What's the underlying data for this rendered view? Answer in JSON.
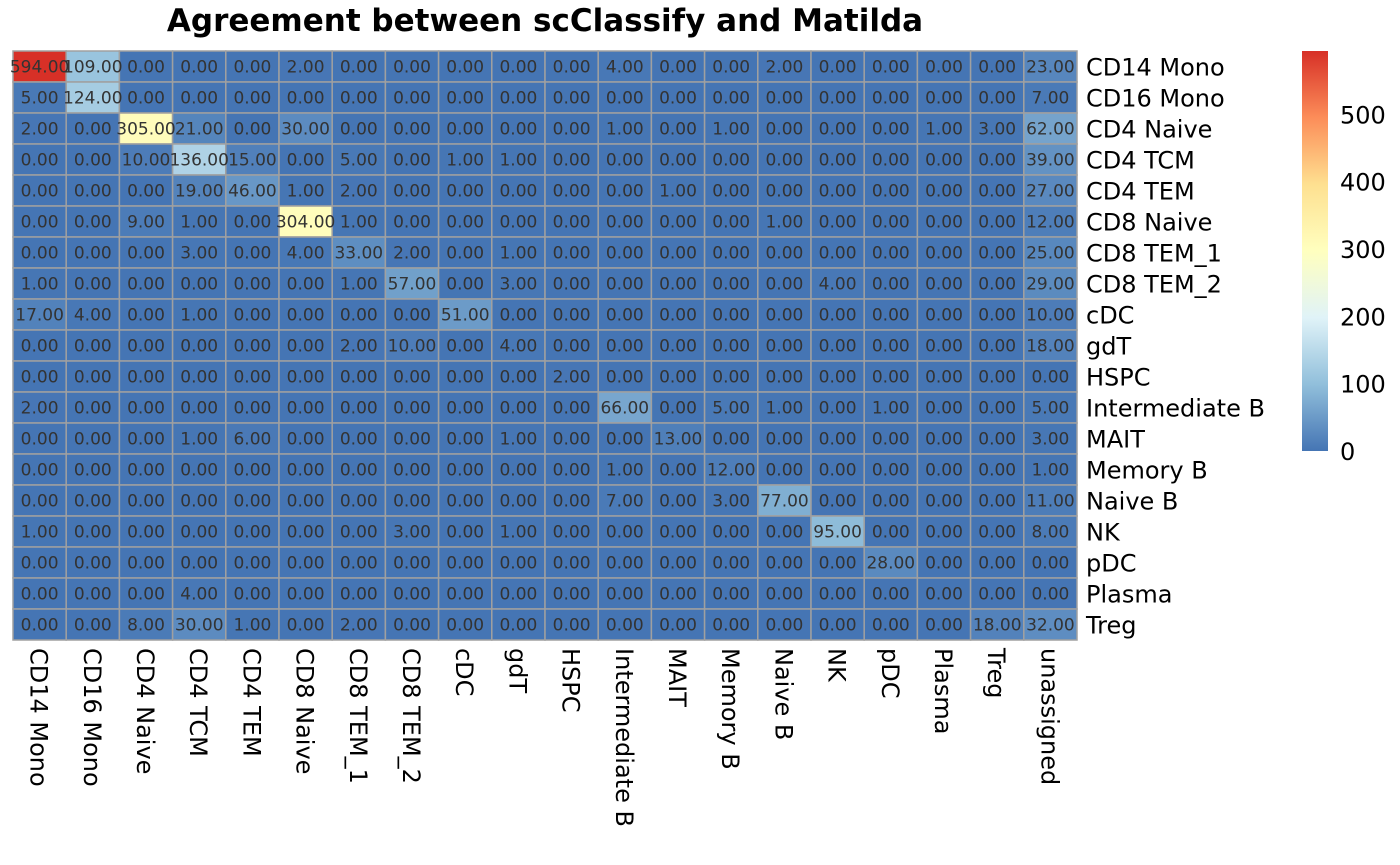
{
  "chart_data": {
    "type": "heatmap",
    "title": "Agreement between scClassify and Matilda",
    "rows": [
      "CD14 Mono",
      "CD16 Mono",
      "CD4 Naive",
      "CD4 TCM",
      "CD4 TEM",
      "CD8 Naive",
      "CD8 TEM_1",
      "CD8 TEM_2",
      "cDC",
      "gdT",
      "HSPC",
      "Intermediate B",
      "MAIT",
      "Memory B",
      "Naive B",
      "NK",
      "pDC",
      "Plasma",
      "Treg"
    ],
    "columns": [
      "CD14 Mono",
      "CD16 Mono",
      "CD4 Naive",
      "CD4 TCM",
      "CD4 TEM",
      "CD8 Naive",
      "CD8 TEM_1",
      "CD8 TEM_2",
      "cDC",
      "gdT",
      "HSPC",
      "Intermediate B",
      "MAIT",
      "Memory B",
      "Naive B",
      "NK",
      "pDC",
      "Plasma",
      "Treg",
      "unassigned"
    ],
    "values": [
      [
        594,
        109,
        0,
        0,
        0,
        2,
        0,
        0,
        0,
        0,
        0,
        4,
        0,
        0,
        2,
        0,
        0,
        0,
        0,
        23
      ],
      [
        5,
        124,
        0,
        0,
        0,
        0,
        0,
        0,
        0,
        0,
        0,
        0,
        0,
        0,
        0,
        0,
        0,
        0,
        0,
        7
      ],
      [
        2,
        0,
        305,
        21,
        0,
        30,
        0,
        0,
        0,
        0,
        0,
        1,
        0,
        1,
        0,
        0,
        0,
        1,
        3,
        62
      ],
      [
        0,
        0,
        10,
        136,
        15,
        0,
        5,
        0,
        1,
        1,
        0,
        0,
        0,
        0,
        0,
        0,
        0,
        0,
        0,
        39
      ],
      [
        0,
        0,
        0,
        19,
        46,
        1,
        2,
        0,
        0,
        0,
        0,
        0,
        1,
        0,
        0,
        0,
        0,
        0,
        0,
        27
      ],
      [
        0,
        0,
        9,
        1,
        0,
        304,
        1,
        0,
        0,
        0,
        0,
        0,
        0,
        0,
        1,
        0,
        0,
        0,
        0,
        12
      ],
      [
        0,
        0,
        0,
        3,
        0,
        4,
        33,
        2,
        0,
        1,
        0,
        0,
        0,
        0,
        0,
        0,
        0,
        0,
        0,
        25
      ],
      [
        1,
        0,
        0,
        0,
        0,
        0,
        1,
        57,
        0,
        3,
        0,
        0,
        0,
        0,
        0,
        4,
        0,
        0,
        0,
        29
      ],
      [
        17,
        4,
        0,
        1,
        0,
        0,
        0,
        0,
        51,
        0,
        0,
        0,
        0,
        0,
        0,
        0,
        0,
        0,
        0,
        10
      ],
      [
        0,
        0,
        0,
        0,
        0,
        0,
        2,
        10,
        0,
        4,
        0,
        0,
        0,
        0,
        0,
        0,
        0,
        0,
        0,
        18
      ],
      [
        0,
        0,
        0,
        0,
        0,
        0,
        0,
        0,
        0,
        0,
        2,
        0,
        0,
        0,
        0,
        0,
        0,
        0,
        0,
        0
      ],
      [
        2,
        0,
        0,
        0,
        0,
        0,
        0,
        0,
        0,
        0,
        0,
        66,
        0,
        5,
        1,
        0,
        1,
        0,
        0,
        5
      ],
      [
        0,
        0,
        0,
        1,
        6,
        0,
        0,
        0,
        0,
        1,
        0,
        0,
        13,
        0,
        0,
        0,
        0,
        0,
        0,
        3
      ],
      [
        0,
        0,
        0,
        0,
        0,
        0,
        0,
        0,
        0,
        0,
        0,
        1,
        0,
        12,
        0,
        0,
        0,
        0,
        0,
        1
      ],
      [
        0,
        0,
        0,
        0,
        0,
        0,
        0,
        0,
        0,
        0,
        0,
        7,
        0,
        3,
        77,
        0,
        0,
        0,
        0,
        11
      ],
      [
        1,
        0,
        0,
        0,
        0,
        0,
        0,
        3,
        0,
        1,
        0,
        0,
        0,
        0,
        0,
        95,
        0,
        0,
        0,
        8
      ],
      [
        0,
        0,
        0,
        0,
        0,
        0,
        0,
        0,
        0,
        0,
        0,
        0,
        0,
        0,
        0,
        0,
        28,
        0,
        0,
        0
      ],
      [
        0,
        0,
        0,
        4,
        0,
        0,
        0,
        0,
        0,
        0,
        0,
        0,
        0,
        0,
        0,
        0,
        0,
        0,
        0,
        0
      ],
      [
        0,
        0,
        8,
        30,
        1,
        0,
        2,
        0,
        0,
        0,
        0,
        0,
        0,
        0,
        0,
        0,
        0,
        0,
        18,
        32
      ]
    ],
    "value_format": "2 decimals",
    "color_scale": {
      "range": [
        0,
        594
      ],
      "stops": [
        "#4575b4",
        "#91bfdb",
        "#e0f3f8",
        "#ffffbf",
        "#fee090",
        "#fc8d59",
        "#d73027"
      ],
      "ticks": [
        0,
        100,
        200,
        300,
        400,
        500
      ]
    },
    "grid": true,
    "cell_border_color": "#a0a0a0",
    "legend_placement": "right"
  }
}
